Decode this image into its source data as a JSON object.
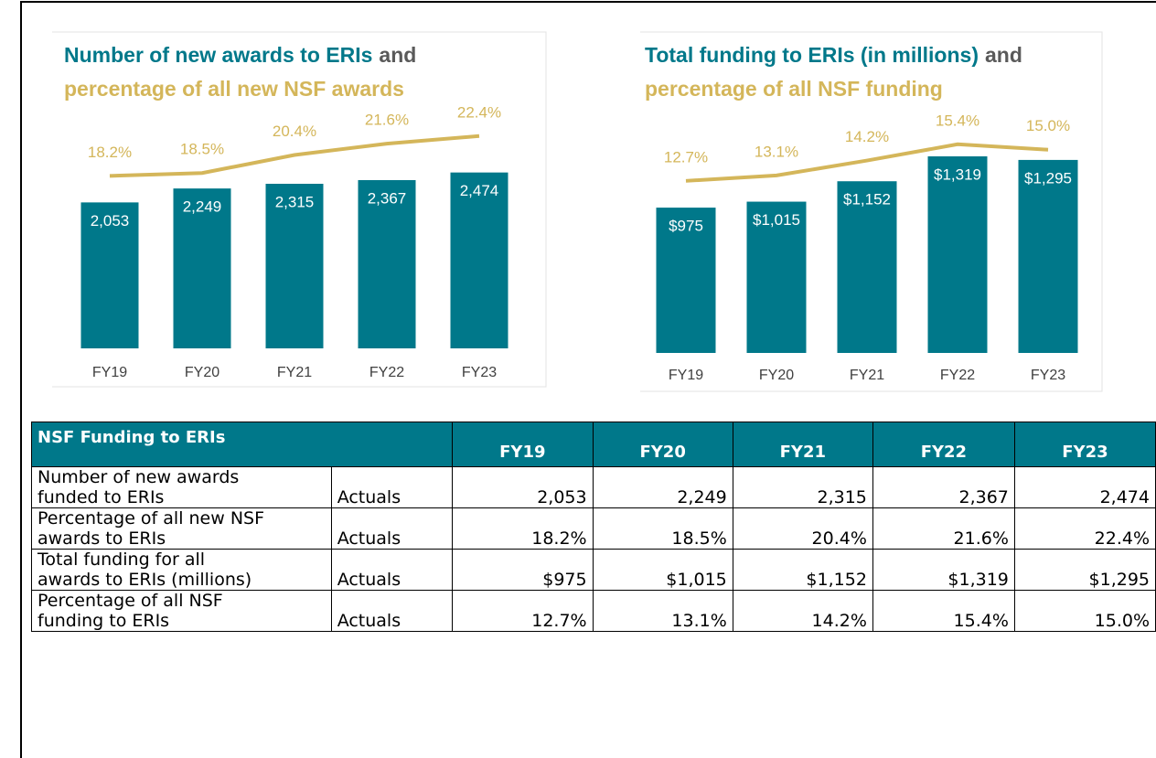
{
  "chart_data": [
    {
      "type": "combo",
      "title": [
        [
          {
            "text": "Number of new awards to ERIs",
            "color": "#00788a"
          },
          {
            "text": "and",
            "color": "#5a5a5a"
          }
        ],
        [
          {
            "text": "percentage of all new NSF awards",
            "color": "#d4b65a"
          }
        ]
      ],
      "categories": [
        "FY19",
        "FY20",
        "FY21",
        "FY22",
        "FY23"
      ],
      "ylim": [
        0,
        4000
      ],
      "y2lim": [
        0,
        30
      ],
      "series": [
        {
          "type": "bar",
          "color": "#00788a",
          "values": [
            2053,
            2249,
            2315,
            2367,
            2474
          ],
          "value_labels": [
            "2,053",
            "2,249",
            "2,315",
            "2,367",
            "2,474"
          ]
        },
        {
          "type": "line",
          "axis": "y2",
          "color": "#d4b65a",
          "values": [
            18.2,
            18.5,
            20.4,
            21.6,
            22.4
          ],
          "value_labels": [
            "18.2%",
            "18.5%",
            "20.4%",
            "21.6%",
            "22.4%"
          ]
        }
      ]
    },
    {
      "type": "combo",
      "title": [
        [
          {
            "text": "Total funding to ERIs (in millions)",
            "color": "#00788a"
          },
          {
            "text": "and",
            "color": "#5a5a5a"
          }
        ],
        [
          {
            "text": "percentage of all NSF funding",
            "color": "#d4b65a"
          }
        ]
      ],
      "categories": [
        "FY19",
        "FY20",
        "FY21",
        "FY22",
        "FY23"
      ],
      "ylim": [
        0,
        2000
      ],
      "y2lim": [
        0,
        22
      ],
      "series": [
        {
          "type": "bar",
          "color": "#00788a",
          "values": [
            975,
            1015,
            1152,
            1319,
            1295
          ],
          "value_labels": [
            "$975",
            "$1,015",
            "$1,152",
            "$1,319",
            "$1,295"
          ]
        },
        {
          "type": "line",
          "axis": "y2",
          "color": "#d4b65a",
          "values": [
            12.7,
            13.1,
            14.2,
            15.4,
            15.0
          ],
          "value_labels": [
            "12.7%",
            "13.1%",
            "14.2%",
            "15.4%",
            "15.0%"
          ]
        }
      ]
    }
  ],
  "table": {
    "header": [
      "NSF Funding to ERIs",
      "FY19",
      "FY20",
      "FY21",
      "FY22",
      "FY23"
    ],
    "rows": [
      [
        "Number of new awards\nfunded to ERIs",
        "Actuals",
        "2,053",
        "2,249",
        "2,315",
        "2,367",
        "2,474"
      ],
      [
        "Percentage of all new NSF\nawards to ERIs",
        "Actuals",
        "18.2%",
        "18.5%",
        "20.4%",
        "21.6%",
        "22.4%"
      ],
      [
        "Total funding for all\nawards to ERIs (millions)",
        "Actuals",
        "$975",
        "$1,015",
        "$1,152",
        "$1,319",
        "$1,295"
      ],
      [
        "Percentage of all NSF\nfunding to ERIs",
        "Actuals",
        "12.7%",
        "13.1%",
        "14.2%",
        "15.4%",
        "15.0%"
      ]
    ]
  }
}
